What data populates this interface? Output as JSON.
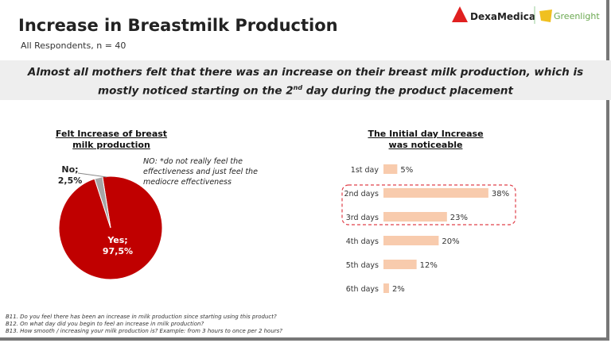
{
  "header": {
    "title": "Increase in Breastmilk Production",
    "subtitle": "All Respondents, n = 40"
  },
  "headline": {
    "text_before": "Almost all mothers felt that there was an increase on their breast milk production, which is mostly noticed starting on the 2",
    "superscript": "nd",
    "text_after": " day during the product placement"
  },
  "logos": {
    "left": "DexaMedica",
    "right": "Greenlight"
  },
  "note": "NO: *do not really feel the effectiveness and just feel the mediocre effectiveness",
  "footnotes": [
    "B11. Do you feel there has been an increase in milk production since starting using this product?",
    "B12. On what day did you begin to feel an increase in milk production?",
    "B13. How smooth / increasing your milk production is? Example: from 3 hours to once per 2 hours?"
  ],
  "chart_data": [
    {
      "type": "pie",
      "title": "Felt Increase of breast milk production",
      "slices": [
        {
          "label": "Yes;",
          "value": 97.5,
          "display": "97,5%",
          "color": "#c00000"
        },
        {
          "label": "No;",
          "value": 2.5,
          "display": "2,5%",
          "color": "#a6a6a6"
        }
      ]
    },
    {
      "type": "bar",
      "orientation": "horizontal",
      "title": "The Initial day Increase was noticeable",
      "categories": [
        "1st day",
        "2nd days",
        "3rd days",
        "4th days",
        "5th days",
        "6th days"
      ],
      "values": [
        5,
        38,
        23,
        20,
        12,
        2
      ],
      "labels": [
        "5%",
        "38%",
        "23%",
        "20%",
        "12%",
        "2%"
      ],
      "color": "#f8cbad",
      "highlighted": [
        "2nd days",
        "3rd days"
      ],
      "highlight_color": "#e0404a"
    }
  ]
}
